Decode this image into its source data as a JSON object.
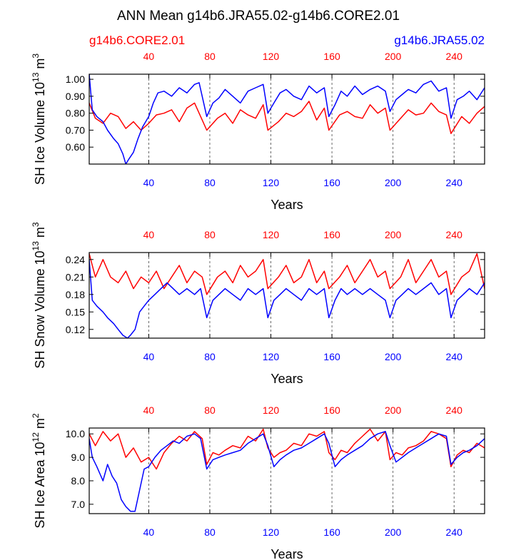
{
  "title": "ANN Mean g14b6.JRA55.02-g14b6.CORE2.01",
  "legend": {
    "left": {
      "text": "g14b6.CORE2.01",
      "color": "#ff0000"
    },
    "right": {
      "text": "g14b6.JRA55.02",
      "color": "#0000ff"
    }
  },
  "colors": {
    "core": "#ff0000",
    "jra": "#0000ff",
    "axis": "#000000"
  },
  "chart_data": [
    {
      "type": "line",
      "id": "ice-volume",
      "ylabel_main": "SH Ice Volume 10",
      "ylabel_exp": "13",
      "ylabel_unit": " m",
      "ylabel_unit_exp": "3",
      "xlabel": "Years",
      "xlim": [
        1,
        260
      ],
      "ylim": [
        0.5,
        1.03
      ],
      "yticks": [
        0.6,
        0.7,
        0.8,
        0.9,
        1.0
      ],
      "ytick_labels": [
        "0.60",
        "0.70",
        "0.80",
        "0.90",
        "1.00"
      ],
      "xticks": [
        40,
        80,
        120,
        160,
        200,
        240
      ],
      "xtick_labels": [
        "40",
        "80",
        "120",
        "160",
        "200",
        "240"
      ],
      "top_xtick_labels": [
        "40",
        "80",
        "120",
        "160",
        "200",
        "240"
      ],
      "series": [
        {
          "name": "g14b6.CORE2.01",
          "color": "#ff0000",
          "x": [
            1,
            5,
            10,
            15,
            20,
            25,
            30,
            35,
            40,
            45,
            50,
            55,
            60,
            65,
            70,
            75,
            78,
            85,
            90,
            95,
            100,
            105,
            110,
            115,
            118,
            125,
            130,
            135,
            140,
            145,
            150,
            155,
            158,
            165,
            170,
            175,
            180,
            185,
            190,
            195,
            198,
            205,
            210,
            215,
            220,
            225,
            230,
            235,
            238,
            245,
            250,
            255,
            260
          ],
          "values": [
            0.86,
            0.77,
            0.74,
            0.8,
            0.78,
            0.71,
            0.75,
            0.7,
            0.74,
            0.79,
            0.8,
            0.82,
            0.75,
            0.83,
            0.86,
            0.76,
            0.7,
            0.77,
            0.8,
            0.74,
            0.82,
            0.79,
            0.77,
            0.85,
            0.7,
            0.75,
            0.8,
            0.78,
            0.81,
            0.87,
            0.76,
            0.83,
            0.7,
            0.79,
            0.81,
            0.78,
            0.77,
            0.85,
            0.8,
            0.83,
            0.7,
            0.77,
            0.82,
            0.79,
            0.8,
            0.86,
            0.81,
            0.79,
            0.68,
            0.78,
            0.74,
            0.8,
            0.84
          ]
        },
        {
          "name": "g14b6.JRA55.02",
          "color": "#0000ff",
          "x": [
            1,
            3,
            6,
            10,
            13,
            17,
            20,
            23,
            25,
            27,
            30,
            33,
            36,
            40,
            43,
            46,
            50,
            55,
            60,
            65,
            70,
            73,
            78,
            82,
            86,
            90,
            95,
            100,
            105,
            110,
            115,
            118,
            122,
            126,
            130,
            135,
            140,
            145,
            150,
            155,
            158,
            162,
            166,
            170,
            175,
            180,
            185,
            190,
            195,
            198,
            202,
            206,
            210,
            215,
            220,
            225,
            230,
            235,
            238,
            242,
            246,
            250,
            255,
            260
          ],
          "values": [
            1.03,
            0.82,
            0.78,
            0.75,
            0.7,
            0.65,
            0.62,
            0.56,
            0.5,
            0.53,
            0.57,
            0.65,
            0.72,
            0.78,
            0.86,
            0.92,
            0.93,
            0.9,
            0.95,
            0.92,
            0.97,
            0.98,
            0.78,
            0.86,
            0.89,
            0.94,
            0.9,
            0.86,
            0.93,
            0.95,
            0.97,
            0.8,
            0.86,
            0.92,
            0.94,
            0.9,
            0.88,
            0.96,
            0.92,
            0.95,
            0.78,
            0.85,
            0.93,
            0.9,
            0.96,
            0.91,
            0.94,
            0.96,
            0.93,
            0.81,
            0.88,
            0.91,
            0.94,
            0.92,
            0.97,
            0.99,
            0.93,
            0.95,
            0.77,
            0.88,
            0.9,
            0.93,
            0.88,
            0.95
          ]
        }
      ]
    },
    {
      "type": "line",
      "id": "snow-volume",
      "ylabel_main": "SH Snow Volume 10",
      "ylabel_exp": "13",
      "ylabel_unit": " m",
      "ylabel_unit_exp": "3",
      "xlabel": "Years",
      "xlim": [
        1,
        260
      ],
      "ylim": [
        0.105,
        0.252
      ],
      "yticks": [
        0.12,
        0.15,
        0.18,
        0.21,
        0.24
      ],
      "ytick_labels": [
        "0.12",
        "0.15",
        "0.18",
        "0.21",
        "0.24"
      ],
      "xticks": [
        40,
        80,
        120,
        160,
        200,
        240
      ],
      "xtick_labels": [
        "40",
        "80",
        "120",
        "160",
        "200",
        "240"
      ],
      "top_xtick_labels": [
        "40",
        "80",
        "120",
        "160",
        "200",
        "240"
      ],
      "series": [
        {
          "name": "g14b6.CORE2.01",
          "color": "#ff0000",
          "x": [
            1,
            5,
            10,
            15,
            20,
            25,
            30,
            35,
            40,
            45,
            50,
            55,
            60,
            65,
            70,
            75,
            78,
            85,
            90,
            95,
            100,
            105,
            110,
            115,
            118,
            125,
            130,
            135,
            140,
            145,
            150,
            155,
            158,
            165,
            170,
            175,
            180,
            185,
            190,
            195,
            198,
            205,
            210,
            215,
            220,
            225,
            230,
            235,
            238,
            245,
            250,
            255,
            260
          ],
          "values": [
            0.25,
            0.21,
            0.24,
            0.21,
            0.2,
            0.22,
            0.19,
            0.21,
            0.2,
            0.22,
            0.19,
            0.21,
            0.23,
            0.2,
            0.22,
            0.21,
            0.18,
            0.21,
            0.22,
            0.2,
            0.23,
            0.21,
            0.22,
            0.24,
            0.19,
            0.21,
            0.23,
            0.2,
            0.21,
            0.24,
            0.2,
            0.22,
            0.19,
            0.21,
            0.23,
            0.2,
            0.22,
            0.24,
            0.21,
            0.22,
            0.19,
            0.21,
            0.24,
            0.2,
            0.22,
            0.24,
            0.21,
            0.22,
            0.18,
            0.21,
            0.22,
            0.25,
            0.19
          ]
        },
        {
          "name": "g14b6.JRA55.02",
          "color": "#0000ff",
          "x": [
            1,
            3,
            6,
            10,
            13,
            17,
            20,
            23,
            26,
            28,
            31,
            34,
            37,
            40,
            44,
            48,
            52,
            56,
            60,
            65,
            70,
            74,
            78,
            82,
            86,
            90,
            95,
            100,
            105,
            110,
            115,
            118,
            122,
            126,
            130,
            135,
            140,
            145,
            150,
            155,
            158,
            162,
            166,
            170,
            175,
            180,
            185,
            190,
            195,
            198,
            202,
            206,
            210,
            215,
            220,
            225,
            230,
            235,
            238,
            242,
            246,
            250,
            255,
            260
          ],
          "values": [
            0.24,
            0.17,
            0.16,
            0.15,
            0.14,
            0.13,
            0.12,
            0.11,
            0.105,
            0.11,
            0.12,
            0.15,
            0.16,
            0.17,
            0.18,
            0.19,
            0.2,
            0.19,
            0.18,
            0.19,
            0.18,
            0.19,
            0.14,
            0.17,
            0.18,
            0.19,
            0.18,
            0.17,
            0.19,
            0.18,
            0.19,
            0.14,
            0.17,
            0.18,
            0.19,
            0.18,
            0.17,
            0.19,
            0.18,
            0.19,
            0.14,
            0.17,
            0.19,
            0.18,
            0.19,
            0.18,
            0.19,
            0.18,
            0.17,
            0.14,
            0.17,
            0.18,
            0.19,
            0.18,
            0.19,
            0.2,
            0.18,
            0.19,
            0.14,
            0.17,
            0.18,
            0.19,
            0.18,
            0.2
          ]
        }
      ]
    },
    {
      "type": "line",
      "id": "ice-area",
      "ylabel_main": "SH Ice Area 10",
      "ylabel_exp": "12",
      "ylabel_unit": " m",
      "ylabel_unit_exp": "2",
      "xlabel": "Years",
      "xlim": [
        1,
        260
      ],
      "ylim": [
        6.6,
        10.25
      ],
      "yticks": [
        7.0,
        8.0,
        9.0,
        10.0
      ],
      "ytick_labels": [
        "7.0",
        "8.0",
        "9.0",
        "10.0"
      ],
      "xticks": [
        40,
        80,
        120,
        160,
        200,
        240
      ],
      "xtick_labels": [
        "40",
        "80",
        "120",
        "160",
        "200",
        "240"
      ],
      "top_xtick_labels": [
        "40",
        "80",
        "120",
        "160",
        "200",
        "240"
      ],
      "series": [
        {
          "name": "g14b6.CORE2.01",
          "color": "#ff0000",
          "x": [
            1,
            5,
            10,
            15,
            20,
            25,
            30,
            35,
            40,
            45,
            50,
            55,
            60,
            65,
            70,
            75,
            78,
            82,
            86,
            90,
            95,
            100,
            105,
            110,
            115,
            118,
            122,
            126,
            130,
            135,
            140,
            145,
            150,
            155,
            158,
            162,
            166,
            170,
            175,
            180,
            185,
            190,
            195,
            198,
            202,
            206,
            210,
            215,
            220,
            225,
            230,
            235,
            238,
            242,
            246,
            250,
            255,
            260
          ],
          "values": [
            10.0,
            9.5,
            10.1,
            9.7,
            10.0,
            9.0,
            9.4,
            8.8,
            9.0,
            8.5,
            9.2,
            9.6,
            9.9,
            9.7,
            10.1,
            9.8,
            8.7,
            9.2,
            9.1,
            9.3,
            9.5,
            9.4,
            9.9,
            9.7,
            10.2,
            9.4,
            9.0,
            9.2,
            9.3,
            9.6,
            9.5,
            10.0,
            9.9,
            10.1,
            9.2,
            8.9,
            9.3,
            9.2,
            9.6,
            9.9,
            10.2,
            9.7,
            10.1,
            8.9,
            9.2,
            9.1,
            9.4,
            9.5,
            9.7,
            10.1,
            10.0,
            9.8,
            8.6,
            9.1,
            9.3,
            9.2,
            9.6,
            9.4
          ]
        },
        {
          "name": "g14b6.JRA55.02",
          "color": "#0000ff",
          "x": [
            1,
            3,
            6,
            10,
            13,
            16,
            19,
            22,
            25,
            28,
            31,
            34,
            37,
            40,
            44,
            48,
            52,
            56,
            60,
            65,
            70,
            74,
            78,
            82,
            86,
            90,
            95,
            100,
            105,
            110,
            115,
            118,
            122,
            126,
            130,
            135,
            140,
            145,
            150,
            155,
            158,
            162,
            166,
            170,
            175,
            180,
            185,
            190,
            195,
            198,
            202,
            206,
            210,
            215,
            220,
            225,
            230,
            235,
            238,
            242,
            246,
            250,
            255,
            260
          ],
          "values": [
            9.8,
            9.0,
            8.6,
            8.0,
            8.7,
            8.2,
            7.9,
            7.2,
            6.9,
            6.7,
            6.7,
            7.6,
            8.5,
            8.6,
            9.0,
            9.3,
            9.5,
            9.7,
            9.6,
            9.9,
            10.0,
            9.8,
            8.5,
            8.9,
            9.0,
            9.1,
            9.2,
            9.3,
            9.6,
            9.8,
            10.0,
            9.5,
            8.6,
            8.9,
            9.1,
            9.3,
            9.4,
            9.6,
            9.8,
            10.0,
            9.6,
            8.6,
            8.9,
            9.1,
            9.3,
            9.5,
            9.8,
            10.0,
            10.1,
            9.5,
            8.8,
            9.0,
            9.2,
            9.4,
            9.6,
            9.8,
            10.0,
            9.9,
            8.7,
            9.0,
            9.2,
            9.3,
            9.5,
            9.8
          ]
        }
      ]
    }
  ]
}
